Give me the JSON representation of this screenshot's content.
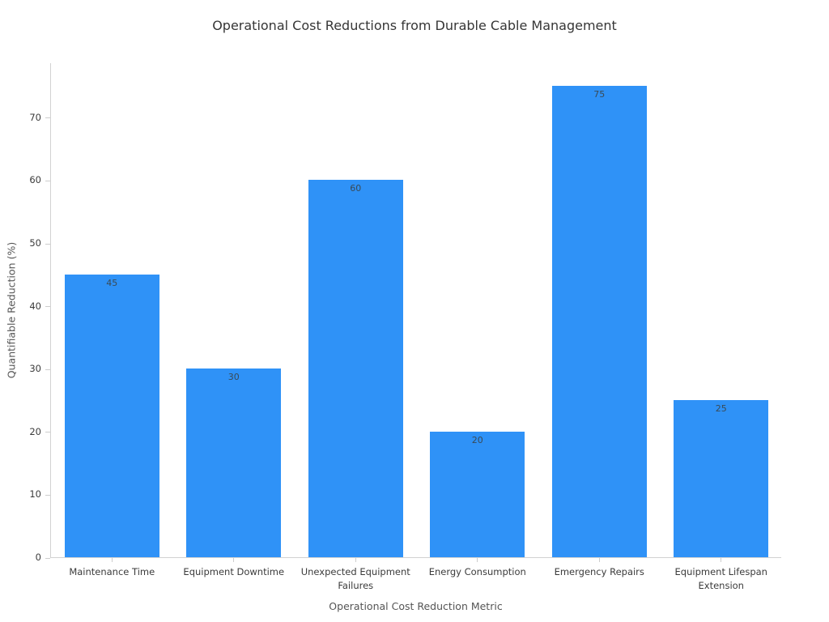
{
  "chart_data": {
    "type": "bar",
    "title": "Operational Cost Reductions from Durable Cable Management",
    "xlabel": "Operational Cost Reduction Metric",
    "ylabel": "Quantifiable Reduction (%)",
    "categories": [
      "Maintenance Time",
      "Equipment Downtime",
      "Unexpected Equipment Failures",
      "Energy Consumption",
      "Emergency Repairs",
      "Equipment Lifespan Extension"
    ],
    "values": [
      45,
      30,
      60,
      20,
      75,
      25
    ],
    "value_labels": [
      "45",
      "30",
      "60",
      "20",
      "75",
      "25"
    ],
    "yticks": [
      0,
      10,
      20,
      30,
      40,
      50,
      60,
      70
    ],
    "ylim": [
      0,
      78.75
    ],
    "grid": false,
    "legend": "none",
    "bar_color": "#2f92f7",
    "value_label_color": "#3a4a55",
    "axis_line_color": "#d2d2d2",
    "tick_label_color": "#3b3b3b",
    "title_color": "#363636",
    "axis_title_color": "#555555"
  }
}
